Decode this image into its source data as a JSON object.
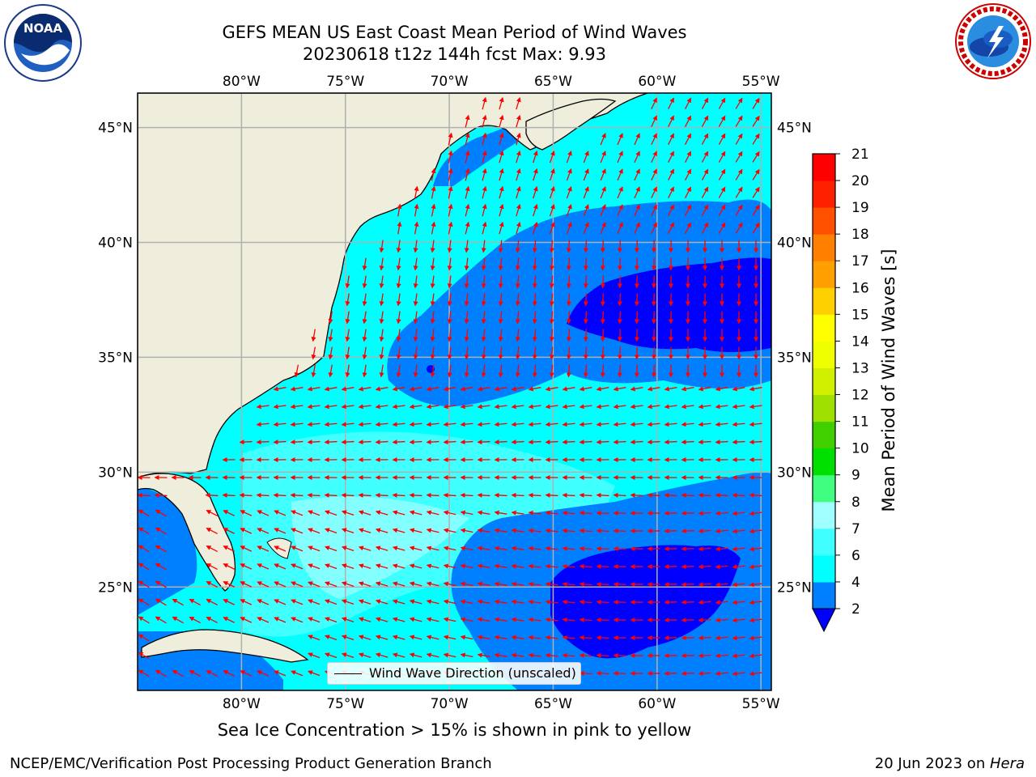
{
  "title": {
    "line1": "GEFS MEAN US East Coast Mean Period of Wind Waves",
    "line2": "20230618 t12z 144h fcst   Max: 9.93"
  },
  "logos": {
    "left": {
      "text": "NOAA",
      "icon": "noaa-logo"
    },
    "right": {
      "icon": "national-weather-service-logo"
    }
  },
  "axes": {
    "lon_labels": [
      "80°W",
      "75°W",
      "70°W",
      "65°W",
      "60°W",
      "55°W"
    ],
    "lat_labels": [
      "45°N",
      "40°N",
      "35°N",
      "30°N",
      "25°N"
    ],
    "lon_values": [
      -80,
      -75,
      -70,
      -65,
      -60,
      -55
    ],
    "lat_values": [
      45,
      40,
      35,
      30,
      25
    ],
    "lon_range": [
      -85,
      -54.5
    ],
    "lat_range": [
      20.5,
      46.5
    ]
  },
  "colorbar": {
    "label": "Mean Period of Wind Waves [s]",
    "ticks": [
      "2",
      "4",
      "6",
      "7",
      "8",
      "9",
      "10",
      "11",
      "12",
      "13",
      "14",
      "15",
      "16",
      "17",
      "18",
      "19",
      "20",
      "21"
    ],
    "colors": [
      "#0000ff",
      "#0080ff",
      "#00ffff",
      "#40ffff",
      "#a0ffff",
      "#40ff80",
      "#00e000",
      "#40d000",
      "#a0e000",
      "#d0f000",
      "#f0ff00",
      "#ffff00",
      "#ffd000",
      "#ffa000",
      "#ff8000",
      "#ff5000",
      "#ff2000",
      "#ff0000"
    ]
  },
  "legend": {
    "label": "Wind Wave Direction (unscaled)"
  },
  "subtitle": "Sea Ice Concentration > 15% is shown in pink to yellow",
  "credits": {
    "left": "NCEP/EMC/Verification Post Processing Product Generation Branch",
    "right_date": "20 Jun 2023 on ",
    "right_host": "Hera"
  },
  "colors": {
    "land": "#efeedc",
    "arrow": "#ff0000",
    "grid": "#b0b0b0",
    "period_lt2": "#0000ff",
    "period_2_4": "#0080ff",
    "period_4_6": "#00ffff",
    "period_6_7": "#40ffff",
    "period_7_8": "#a0ffff"
  }
}
